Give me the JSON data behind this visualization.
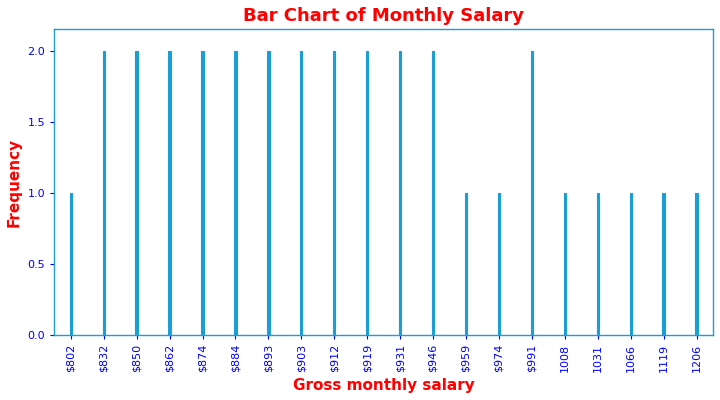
{
  "title": "Bar Chart of Monthly Salary",
  "xlabel": "Gross monthly salary",
  "ylabel": "Frequency",
  "bar_color": "#1A9ED4",
  "edge_color": "#1A9ED4",
  "title_color": "red",
  "label_color": "red",
  "tick_color": "blue",
  "spine_color": "#1A9ED4",
  "categories": [
    "$802",
    "$832",
    "$850",
    "$862",
    "$874",
    "$884",
    "$893",
    "$903",
    "$912",
    "$919",
    "$931",
    "$946",
    "$959",
    "$974",
    "$991",
    "1008",
    "1031",
    "1066",
    "1119",
    "1206"
  ],
  "values": [
    1,
    2,
    2,
    2,
    2,
    2,
    2,
    2,
    2,
    2,
    2,
    2,
    1,
    1,
    2,
    1,
    1,
    1,
    1,
    1
  ],
  "ylim": [
    0,
    2.15
  ],
  "yticks": [
    0.0,
    0.5,
    1.0,
    1.5,
    2.0
  ],
  "bar_width": 0.07,
  "background_color": "white",
  "title_fontsize": 13,
  "axis_label_fontsize": 11,
  "tick_fontsize": 8
}
